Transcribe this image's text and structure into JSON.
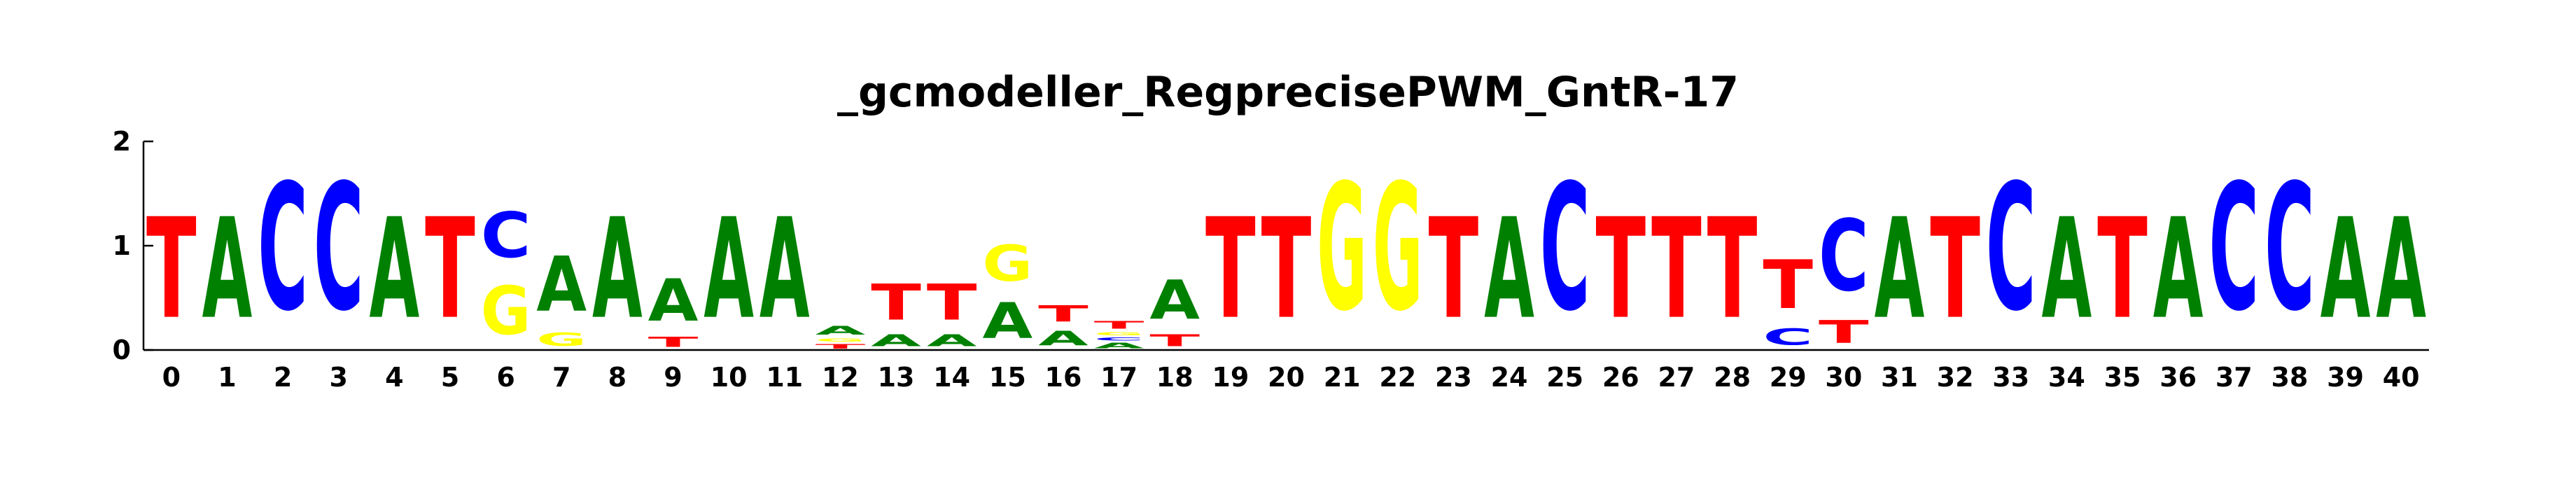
{
  "chart_data": {
    "type": "sequence-logo",
    "title": "_gcmodeller_RegprecisePWM_GntR-17",
    "xlabel": "",
    "ylabel": "",
    "ylim": [
      0,
      2
    ],
    "y_ticks": [
      "0",
      "1",
      "2"
    ],
    "colors": {
      "A": "#008000",
      "C": "#0000ff",
      "G": "#ffff00",
      "T": "#ff0000"
    },
    "positions": [
      {
        "pos": "0",
        "letters": [
          {
            "base": "T",
            "bits": 1.55
          }
        ]
      },
      {
        "pos": "1",
        "letters": [
          {
            "base": "A",
            "bits": 1.55
          }
        ]
      },
      {
        "pos": "2",
        "letters": [
          {
            "base": "C",
            "bits": 1.95
          }
        ]
      },
      {
        "pos": "3",
        "letters": [
          {
            "base": "C",
            "bits": 1.95
          }
        ]
      },
      {
        "pos": "4",
        "letters": [
          {
            "base": "A",
            "bits": 1.55
          }
        ]
      },
      {
        "pos": "5",
        "letters": [
          {
            "base": "T",
            "bits": 1.55
          }
        ]
      },
      {
        "pos": "6",
        "letters": [
          {
            "base": "G",
            "bits": 0.75
          },
          {
            "base": "C",
            "bits": 0.7
          }
        ]
      },
      {
        "pos": "7",
        "letters": [
          {
            "base": "G",
            "bits": 0.2
          },
          {
            "base": "A",
            "bits": 0.85
          }
        ]
      },
      {
        "pos": "8",
        "letters": [
          {
            "base": "A",
            "bits": 1.55
          }
        ]
      },
      {
        "pos": "9",
        "letters": [
          {
            "base": "T",
            "bits": 0.15
          },
          {
            "base": "A",
            "bits": 0.65
          }
        ]
      },
      {
        "pos": "10",
        "letters": [
          {
            "base": "A",
            "bits": 1.55
          }
        ]
      },
      {
        "pos": "11",
        "letters": [
          {
            "base": "A",
            "bits": 1.55
          }
        ]
      },
      {
        "pos": "12",
        "letters": [
          {
            "base": "T",
            "bits": 0.07
          },
          {
            "base": "G",
            "bits": 0.05
          },
          {
            "base": "A",
            "bits": 0.13
          }
        ]
      },
      {
        "pos": "13",
        "letters": [
          {
            "base": "A",
            "bits": 0.18
          },
          {
            "base": "T",
            "bits": 0.55
          }
        ]
      },
      {
        "pos": "14",
        "letters": [
          {
            "base": "A",
            "bits": 0.18
          },
          {
            "base": "T",
            "bits": 0.55
          }
        ]
      },
      {
        "pos": "15",
        "letters": [
          {
            "base": "A",
            "bits": 0.55
          },
          {
            "base": "G",
            "bits": 0.55
          }
        ]
      },
      {
        "pos": "16",
        "letters": [
          {
            "base": "A",
            "bits": 0.22
          },
          {
            "base": "T",
            "bits": 0.25
          }
        ]
      },
      {
        "pos": "17",
        "letters": [
          {
            "base": "A",
            "bits": 0.08
          },
          {
            "base": "C",
            "bits": 0.05
          },
          {
            "base": "G",
            "bits": 0.05
          },
          {
            "base": "T",
            "bits": 0.12
          }
        ]
      },
      {
        "pos": "18",
        "letters": [
          {
            "base": "T",
            "bits": 0.18
          },
          {
            "base": "A",
            "bits": 0.6
          }
        ]
      },
      {
        "pos": "19",
        "letters": [
          {
            "base": "T",
            "bits": 1.55
          }
        ]
      },
      {
        "pos": "20",
        "letters": [
          {
            "base": "T",
            "bits": 1.55
          }
        ]
      },
      {
        "pos": "21",
        "letters": [
          {
            "base": "G",
            "bits": 1.95
          }
        ]
      },
      {
        "pos": "22",
        "letters": [
          {
            "base": "G",
            "bits": 1.95
          }
        ]
      },
      {
        "pos": "23",
        "letters": [
          {
            "base": "T",
            "bits": 1.55
          }
        ]
      },
      {
        "pos": "24",
        "letters": [
          {
            "base": "A",
            "bits": 1.55
          }
        ]
      },
      {
        "pos": "25",
        "letters": [
          {
            "base": "C",
            "bits": 1.95
          }
        ]
      },
      {
        "pos": "26",
        "letters": [
          {
            "base": "T",
            "bits": 1.55
          }
        ]
      },
      {
        "pos": "27",
        "letters": [
          {
            "base": "T",
            "bits": 1.55
          }
        ]
      },
      {
        "pos": "28",
        "letters": [
          {
            "base": "T",
            "bits": 1.55
          }
        ]
      },
      {
        "pos": "29",
        "letters": [
          {
            "base": "C",
            "bits": 0.25
          },
          {
            "base": "T",
            "bits": 0.75
          }
        ]
      },
      {
        "pos": "30",
        "letters": [
          {
            "base": "T",
            "bits": 0.35
          },
          {
            "base": "C",
            "bits": 1.1
          }
        ]
      },
      {
        "pos": "31",
        "letters": [
          {
            "base": "A",
            "bits": 1.55
          }
        ]
      },
      {
        "pos": "32",
        "letters": [
          {
            "base": "T",
            "bits": 1.55
          }
        ]
      },
      {
        "pos": "33",
        "letters": [
          {
            "base": "C",
            "bits": 1.95
          }
        ]
      },
      {
        "pos": "34",
        "letters": [
          {
            "base": "A",
            "bits": 1.55
          }
        ]
      },
      {
        "pos": "35",
        "letters": [
          {
            "base": "T",
            "bits": 1.55
          }
        ]
      },
      {
        "pos": "36",
        "letters": [
          {
            "base": "A",
            "bits": 1.55
          }
        ]
      },
      {
        "pos": "37",
        "letters": [
          {
            "base": "C",
            "bits": 1.95
          }
        ]
      },
      {
        "pos": "38",
        "letters": [
          {
            "base": "C",
            "bits": 1.95
          }
        ]
      },
      {
        "pos": "39",
        "letters": [
          {
            "base": "A",
            "bits": 1.55
          }
        ]
      },
      {
        "pos": "40",
        "letters": [
          {
            "base": "A",
            "bits": 1.55
          }
        ]
      }
    ]
  }
}
